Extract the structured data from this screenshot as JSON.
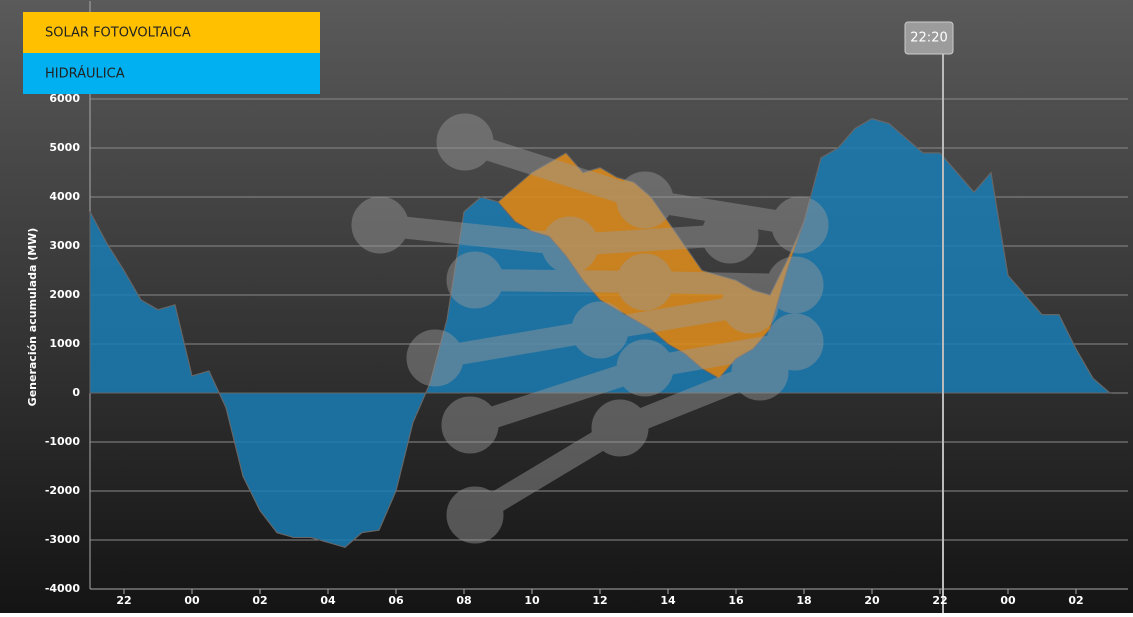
{
  "chart_data": {
    "type": "stacked-area",
    "ylabel": "Generación acumulada (MW)",
    "cursor_label": "22:20",
    "categories": [
      null,
      null,
      "22",
      null,
      null,
      null,
      "00",
      null,
      null,
      null,
      "02",
      null,
      null,
      null,
      "04",
      null,
      null,
      null,
      "06",
      null,
      null,
      null,
      "08",
      null,
      null,
      null,
      "10",
      null,
      null,
      null,
      "12",
      null,
      null,
      null,
      "14",
      null,
      null,
      null,
      "16",
      null,
      null,
      null,
      "18",
      null,
      null,
      null,
      "20",
      null,
      null,
      null,
      "22",
      null,
      null,
      null,
      "00",
      null,
      null,
      null,
      "02",
      null,
      null
    ],
    "series": [
      {
        "name": "HIDRÁULICA",
        "color": "#1a7db5",
        "legend_color": "#00b0f0",
        "values": [
          3700,
          3050,
          2500,
          1900,
          1700,
          1800,
          350,
          450,
          -300,
          -1700,
          -2400,
          -2850,
          -2950,
          -2950,
          -3050,
          -3150,
          -2850,
          -2800,
          -2000,
          -600,
          200,
          1500,
          3700,
          4000,
          3900,
          3500,
          3300,
          3200,
          2800,
          2300,
          1900,
          1700,
          1500,
          1300,
          1000,
          800,
          500,
          300,
          700,
          900,
          1300,
          2500,
          3500,
          4800,
          5000,
          5400,
          5600,
          5500,
          5200,
          4900,
          4900,
          4500,
          4100,
          4500,
          2400,
          2000,
          1600,
          1600,
          900,
          300,
          0
        ]
      },
      {
        "name": "SOLAR FOTOVOLTAICA",
        "color": "#d8891c",
        "legend_color": "#ffc000",
        "values": [
          0,
          0,
          0,
          0,
          0,
          0,
          0,
          0,
          0,
          0,
          0,
          0,
          0,
          0,
          0,
          0,
          0,
          0,
          0,
          0,
          0,
          0,
          0,
          0,
          0,
          700,
          1200,
          1500,
          2100,
          2200,
          2700,
          2700,
          2800,
          2700,
          2500,
          2200,
          2000,
          2100,
          1600,
          1200,
          700,
          200,
          0,
          0,
          0,
          0,
          0,
          0,
          0,
          0,
          0,
          0,
          0,
          0,
          0,
          0,
          0,
          0,
          0,
          0,
          0
        ]
      }
    ],
    "ylim": [
      -4000,
      8000
    ],
    "yticks": [
      -4000,
      -3000,
      -2000,
      -1000,
      0,
      1000,
      2000,
      3000,
      4000,
      5000,
      6000
    ],
    "grid": true
  }
}
